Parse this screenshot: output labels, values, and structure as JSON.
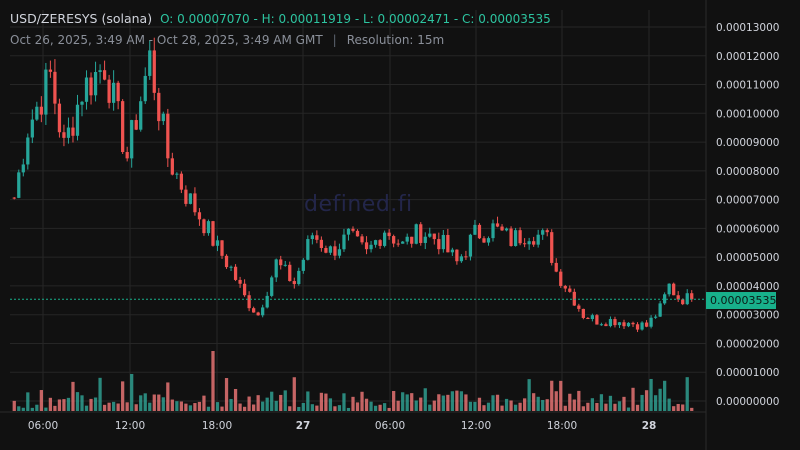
{
  "header": {
    "pair": "USD/ZERESYS (solana)",
    "ohlc": "O: 0.00007070 - H: 0.00011919 - L: 0.00002471 - C: 0.00003535",
    "range": "Oct 26, 2025, 3:49 AM - Oct 28, 2025, 3:49 AM GMT",
    "separator": "|",
    "resolution": "Resolution: 15m"
  },
  "watermark": "defined.fi",
  "current_price_label": "0.00003535",
  "colors": {
    "background": "#111111",
    "grid": "#262626",
    "up": "#26a69a",
    "down": "#ef5350",
    "accent": "#18b08b",
    "text": "#d1d4dc"
  },
  "chart_data": {
    "type": "candlestick",
    "x_ticks": [
      "06:00",
      "12:00",
      "18:00",
      "27",
      "06:00",
      "12:00",
      "18:00",
      "28"
    ],
    "y_ticks": [
      "0.00000000",
      "0.00001000",
      "0.00002000",
      "0.00003000",
      "0.00004000",
      "0.00005000",
      "0.00006000",
      "0.00007000",
      "0.00008000",
      "0.00009000",
      "0.00010000",
      "0.00011000",
      "0.00012000",
      "0.00013000"
    ],
    "ylim": [
      0,
      0.00013
    ],
    "open": 7.07e-05,
    "high": 0.00011919,
    "low": 2.471e-05,
    "close": 3.535e-05,
    "current_price": 3.535e-05,
    "price_path": [
      [
        0,
        7.07e-05
      ],
      [
        3,
        9.5e-05
      ],
      [
        8,
        0.000113
      ],
      [
        11,
        8.8e-05
      ],
      [
        15,
        0.000108
      ],
      [
        20,
        0.000117
      ],
      [
        25,
        8.5e-05
      ],
      [
        30,
        0.000119
      ],
      [
        34,
        8.5e-05
      ],
      [
        38,
        7.2e-05
      ],
      [
        42,
        6.2e-05
      ],
      [
        45,
        5.3e-05
      ],
      [
        48,
        4.6e-05
      ],
      [
        51,
        3.6e-05
      ],
      [
        54,
        3e-05
      ],
      [
        58,
        4.8e-05
      ],
      [
        62,
        4.1e-05
      ],
      [
        66,
        5.8e-05
      ],
      [
        70,
        5.2e-05
      ],
      [
        74,
        5.7e-05
      ],
      [
        78,
        5.1e-05
      ],
      [
        82,
        6e-05
      ],
      [
        86,
        5.4e-05
      ],
      [
        90,
        5.9e-05
      ],
      [
        94,
        5.6e-05
      ],
      [
        98,
        4.8e-05
      ],
      [
        102,
        5.8e-05
      ],
      [
        106,
        6e-05
      ],
      [
        110,
        5.6e-05
      ],
      [
        114,
        5.9e-05
      ],
      [
        118,
        5.6e-05
      ],
      [
        120,
        4.5e-05
      ],
      [
        123,
        3.8e-05
      ],
      [
        126,
        3e-05
      ],
      [
        129,
        2.8e-05
      ],
      [
        133,
        2.8e-05
      ],
      [
        137,
        2.7e-05
      ],
      [
        140,
        2.6e-05
      ],
      [
        143,
        3.2e-05
      ],
      [
        145,
        4e-05
      ],
      [
        147,
        3.6e-05
      ],
      [
        150,
        3.535e-05
      ]
    ],
    "volume_spike_index": 44
  }
}
